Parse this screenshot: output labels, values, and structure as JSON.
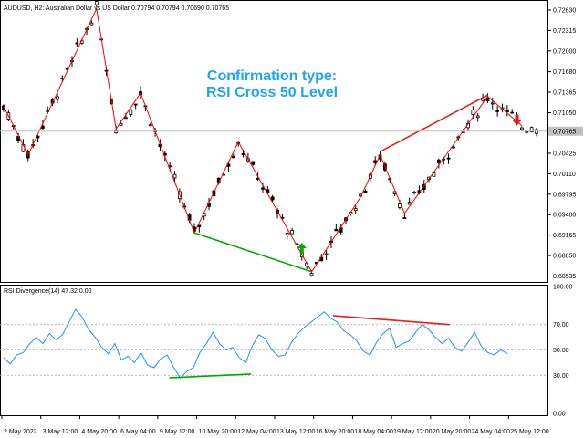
{
  "chart_data": [
    {
      "type": "candlestick",
      "title": "AUDUSD, H2:  Australian Dollar vs US Dollar  0.70794 0.70794 0.70690 0.70765",
      "annotation": [
        "Confirmation type:",
        "RSI Cross 50 Level"
      ],
      "ylim": [
        0.685,
        0.727
      ],
      "y_ticks": [
        "0.72630",
        "0.72315",
        "0.72000",
        "0.71680",
        "0.71365",
        "0.71050",
        "0.70735",
        "0.70425",
        "0.70110",
        "0.69795",
        "0.69480",
        "0.69165",
        "0.68850",
        "0.68535"
      ],
      "current_price_label": "0.70765",
      "current_price": 0.70765,
      "grid": false,
      "zigzag_points": [
        [
          0,
          0.7115
        ],
        [
          5,
          0.704
        ],
        [
          19,
          0.7265
        ],
        [
          23,
          0.708
        ],
        [
          28,
          0.7135
        ],
        [
          39,
          0.692
        ],
        [
          48,
          0.706
        ],
        [
          63,
          0.686
        ],
        [
          73,
          0.6975
        ],
        [
          77,
          0.704
        ],
        [
          82,
          0.695
        ],
        [
          99,
          0.713
        ],
        [
          106,
          0.7085
        ]
      ],
      "divergence_lines": [
        {
          "color": "#00aa00",
          "from": [
            39,
            0.692
          ],
          "to": [
            63,
            0.686
          ]
        },
        {
          "color": "#e02020",
          "from": [
            77,
            0.7045
          ],
          "to": [
            99,
            0.7132
          ]
        }
      ],
      "signal_arrows": [
        {
          "kind": "buy",
          "x": 61,
          "y": 0.6895,
          "color": "#00aa00"
        },
        {
          "kind": "sell",
          "x": 105,
          "y": 0.7095,
          "color": "#e02020"
        }
      ]
    },
    {
      "type": "line",
      "title": "RSI Divergence(14) 47.32 0.00",
      "ylim": [
        0,
        100
      ],
      "y_ticks": [
        "100.00",
        "70.00",
        "50.00",
        "30.00",
        "0.00"
      ],
      "levels": [
        70,
        50,
        30
      ],
      "rsi_values": [
        44,
        39,
        46,
        48,
        55,
        60,
        55,
        63,
        58,
        62,
        72,
        82,
        76,
        66,
        60,
        52,
        47,
        55,
        42,
        45,
        40,
        48,
        38,
        36,
        43,
        46,
        36,
        28,
        33,
        36,
        48,
        55,
        64,
        55,
        50,
        52,
        44,
        40,
        53,
        62,
        59,
        50,
        45,
        46,
        56,
        63,
        68,
        72,
        76,
        80,
        75,
        72,
        65,
        62,
        57,
        49,
        46,
        56,
        63,
        67,
        52,
        55,
        57,
        64,
        70,
        66,
        60,
        55,
        59,
        52,
        49,
        56,
        64,
        53,
        48,
        46,
        50,
        47
      ],
      "divergence_lines": [
        {
          "color": "#00aa00",
          "from": [
            0.29,
            28
          ],
          "to": [
            0.43,
            31
          ]
        },
        {
          "color": "#e02020",
          "from": [
            0.57,
            77
          ],
          "to": [
            0.77,
            70
          ]
        }
      ]
    }
  ],
  "x_axis": {
    "tick_labels": [
      "2 May 2022",
      "3 May 12:00",
      "4 May 20:00",
      "6 May 04:00",
      "9 May 12:00",
      "10 May 20:00",
      "12 May 04:00",
      "13 May 12:00",
      "16 May 20:00",
      "18 May 04:00",
      "19 May 12:00",
      "20 May 20:00",
      "24 May 04:00",
      "25 May 12:00"
    ]
  },
  "colors": {
    "bull": "#000000",
    "bear": "#000000",
    "zigzag": "#ff0000",
    "rsi_line": "#1e90ff",
    "level_line": "#b0b0b0",
    "price_line": "#c0c0c0",
    "price_label_bg": "#c0c0c0",
    "annotation": "#1ea5f0"
  }
}
